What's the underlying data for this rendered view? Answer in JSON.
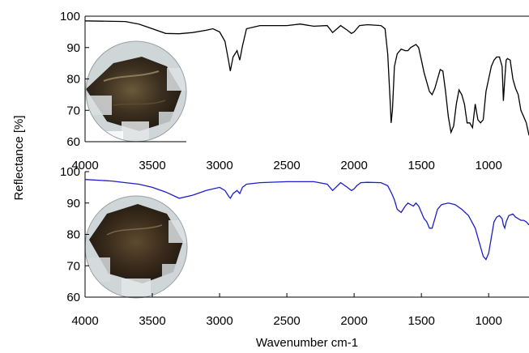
{
  "chart_data": [
    {
      "type": "line",
      "panel": "top",
      "ylabel": "Reflectance [%]",
      "xlim": [
        4000,
        700
      ],
      "x_reversed": true,
      "ylim": [
        60,
        100
      ],
      "yticks": [
        60,
        70,
        80,
        90,
        100
      ],
      "xticks": [
        4000,
        3500,
        3000,
        2500,
        2000,
        1500,
        1000
      ],
      "grid": false,
      "series": [
        {
          "color": "#000000",
          "x": [
            4000,
            3700,
            3600,
            3500,
            3400,
            3300,
            3200,
            3100,
            3050,
            3000,
            2960,
            2930,
            2920,
            2900,
            2870,
            2850,
            2830,
            2800,
            2700,
            2500,
            2400,
            2300,
            2200,
            2160,
            2100,
            2050,
            2020,
            2000,
            1980,
            1960,
            1900,
            1800,
            1770,
            1750,
            1730,
            1725,
            1715,
            1700,
            1680,
            1650,
            1620,
            1600,
            1580,
            1560,
            1540,
            1520,
            1500,
            1480,
            1460,
            1440,
            1420,
            1400,
            1380,
            1360,
            1340,
            1320,
            1300,
            1280,
            1260,
            1240,
            1220,
            1200,
            1180,
            1160,
            1140,
            1120,
            1100,
            1080,
            1060,
            1040,
            1020,
            1000,
            980,
            960,
            940,
            920,
            900,
            890,
            880,
            870,
            860,
            840,
            820,
            800,
            780,
            760,
            740,
            720,
            700
          ],
          "y": [
            98.5,
            98.3,
            97.5,
            96,
            94.5,
            94.4,
            94.8,
            95.5,
            96,
            95,
            92,
            85,
            82.5,
            87,
            89,
            86,
            90.5,
            96,
            97,
            97,
            97.5,
            96.8,
            97,
            94.8,
            97,
            95.5,
            94.5,
            95,
            96,
            97,
            97.3,
            97,
            96,
            88,
            71,
            66,
            70,
            84,
            88,
            89.5,
            89,
            89,
            90,
            90.5,
            91,
            90,
            86,
            82,
            79,
            76,
            75,
            77,
            80,
            83,
            82.5,
            76,
            68,
            63,
            65,
            72,
            76.5,
            75,
            72,
            66,
            66,
            64.5,
            72,
            67,
            66,
            67,
            76,
            80,
            84,
            86,
            87,
            87,
            84,
            73,
            80,
            86,
            86.5,
            86,
            80,
            77,
            75,
            70,
            68,
            66,
            62
          ]
        }
      ]
    },
    {
      "type": "line",
      "panel": "bottom",
      "ylabel": "Reflectance [%]",
      "xlabel": "Wavenumber cm-1",
      "xlim": [
        4000,
        700
      ],
      "x_reversed": true,
      "ylim": [
        60,
        100
      ],
      "yticks": [
        60,
        70,
        80,
        90,
        100
      ],
      "xticks": [
        4000,
        3500,
        3000,
        2500,
        2000,
        1500,
        1000
      ],
      "grid": false,
      "series": [
        {
          "color": "#1e1ec8",
          "x": [
            4000,
            3800,
            3700,
            3600,
            3500,
            3400,
            3300,
            3200,
            3100,
            3000,
            2960,
            2930,
            2920,
            2900,
            2870,
            2850,
            2830,
            2800,
            2700,
            2500,
            2300,
            2200,
            2160,
            2100,
            2050,
            2020,
            2000,
            1980,
            1950,
            1900,
            1800,
            1750,
            1720,
            1700,
            1680,
            1650,
            1620,
            1600,
            1580,
            1560,
            1540,
            1520,
            1500,
            1480,
            1460,
            1440,
            1420,
            1400,
            1380,
            1350,
            1300,
            1250,
            1200,
            1150,
            1100,
            1080,
            1060,
            1040,
            1020,
            1000,
            980,
            960,
            940,
            920,
            900,
            890,
            880,
            870,
            850,
            820,
            800,
            780,
            760,
            740,
            720,
            700
          ],
          "y": [
            97.5,
            97,
            96.5,
            96,
            95,
            93.5,
            91.5,
            92.5,
            94,
            95,
            94,
            92,
            91.5,
            93,
            94,
            93,
            95,
            96,
            96.5,
            96.8,
            96.8,
            96,
            94,
            96.5,
            95,
            94,
            94.5,
            95.5,
            96.5,
            96.6,
            96.5,
            95.5,
            93,
            91,
            88,
            87,
            89,
            90,
            89.5,
            89,
            90,
            89,
            87,
            85,
            84,
            82,
            82,
            85,
            88,
            89.5,
            90,
            89.5,
            88,
            86,
            82,
            79,
            76,
            73,
            72,
            74,
            79,
            84,
            85.5,
            86,
            85,
            83,
            82,
            84,
            86,
            86.5,
            85.5,
            85,
            84.5,
            84.5,
            84,
            83
          ]
        }
      ]
    }
  ]
}
